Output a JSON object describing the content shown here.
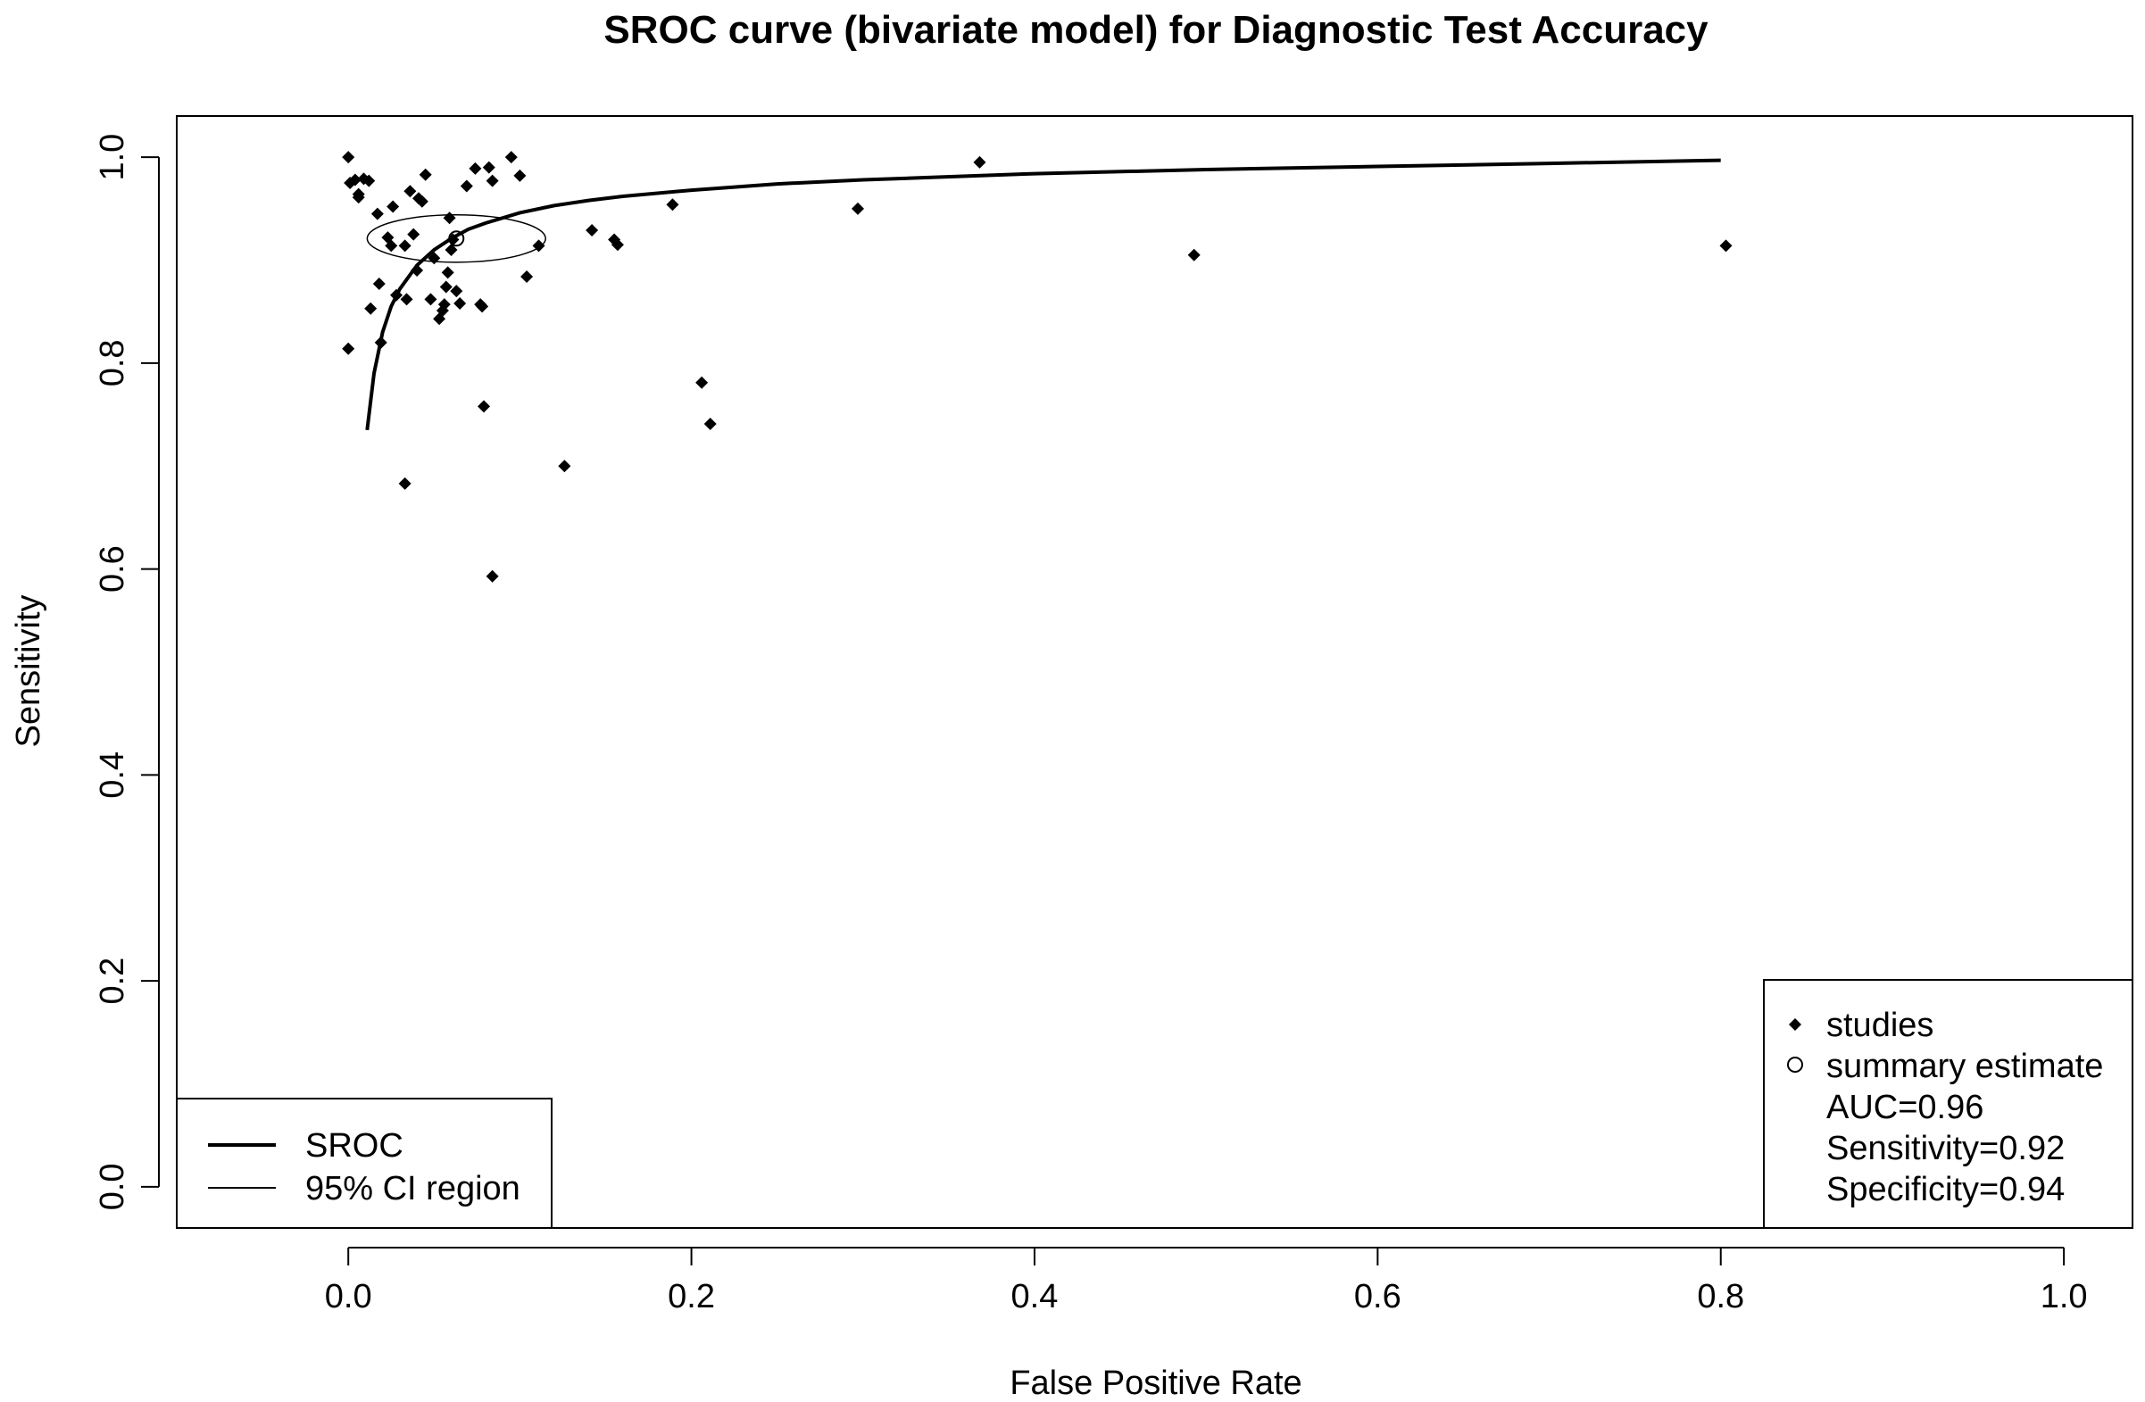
{
  "chart_data": {
    "type": "scatter",
    "title": "SROC curve (bivariate model) for Diagnostic Test Accuracy",
    "xlabel": "False Positive Rate",
    "ylabel": "Sensitivity",
    "xlim": [
      -0.1,
      1.04
    ],
    "ylim": [
      -0.04,
      1.04
    ],
    "x_ticks": [
      0.0,
      0.2,
      0.4,
      0.6,
      0.8,
      1.0
    ],
    "x_tick_labels": [
      "0.0",
      "0.2",
      "0.4",
      "0.6",
      "0.8",
      "1.0"
    ],
    "y_ticks": [
      0.0,
      0.2,
      0.4,
      0.6,
      0.8,
      1.0
    ],
    "y_tick_labels": [
      "0.0",
      "0.2",
      "0.4",
      "0.6",
      "0.8",
      "1.0"
    ],
    "grid": false,
    "series": [
      {
        "name": "studies",
        "kind": "points",
        "marker": "filled-diamond",
        "x": [
          0.0,
          0.001,
          0.004,
          0.006,
          0.006,
          0.009,
          0.012,
          0.013,
          0.017,
          0.018,
          0.019,
          0.023,
          0.025,
          0.026,
          0.028,
          0.033,
          0.034,
          0.036,
          0.038,
          0.04,
          0.041,
          0.043,
          0.045,
          0.048,
          0.05,
          0.053,
          0.055,
          0.056,
          0.057,
          0.058,
          0.059,
          0.06,
          0.061,
          0.063,
          0.065,
          0.069,
          0.074,
          0.077,
          0.079,
          0.082,
          0.084,
          0.095,
          0.1,
          0.104,
          0.111,
          0.142,
          0.155,
          0.157,
          0.189,
          0.0,
          0.033,
          0.078,
          0.084,
          0.126,
          0.206,
          0.211,
          0.297,
          0.368,
          0.493,
          0.803
        ],
        "y": [
          1.0,
          0.975,
          0.978,
          0.964,
          0.961,
          0.979,
          0.977,
          0.853,
          0.945,
          0.877,
          0.82,
          0.922,
          0.914,
          0.952,
          0.866,
          0.914,
          0.862,
          0.967,
          0.925,
          0.89,
          0.96,
          0.957,
          0.983,
          0.862,
          0.902,
          0.843,
          0.851,
          0.857,
          0.874,
          0.888,
          0.941,
          0.91,
          0.92,
          0.87,
          0.858,
          0.972,
          0.989,
          0.857,
          0.758,
          0.99,
          0.977,
          1.0,
          0.982,
          0.884,
          0.914,
          0.929,
          0.92,
          0.915,
          0.954,
          0.814,
          0.683,
          0.855,
          0.593,
          0.7,
          0.781,
          0.741,
          0.95,
          0.995,
          0.905,
          0.914
        ]
      },
      {
        "name": "summary estimate",
        "kind": "point",
        "marker": "open-circle",
        "x": [
          0.063
        ],
        "y": [
          0.921
        ]
      },
      {
        "name": "SROC",
        "kind": "line",
        "x": [
          0.011,
          0.015,
          0.02,
          0.025,
          0.03,
          0.04,
          0.05,
          0.06,
          0.07,
          0.08,
          0.1,
          0.12,
          0.14,
          0.16,
          0.2,
          0.25,
          0.3,
          0.4,
          0.5,
          0.6,
          0.7,
          0.8
        ],
        "y": [
          0.735,
          0.79,
          0.83,
          0.855,
          0.872,
          0.895,
          0.91,
          0.921,
          0.93,
          0.936,
          0.946,
          0.953,
          0.958,
          0.962,
          0.968,
          0.974,
          0.978,
          0.984,
          0.988,
          0.991,
          0.994,
          0.997
        ]
      },
      {
        "name": "95% CI region",
        "kind": "ellipse",
        "center": [
          0.063,
          0.921
        ],
        "radius_x": 0.052,
        "radius_y": 0.023
      }
    ],
    "summary": {
      "auc_label": "AUC=0.96",
      "sensitivity_label": "Sensitivity=0.92",
      "specificity_label": "Specificity=0.94"
    },
    "legends": {
      "left": {
        "position": "bottom-left",
        "entries": [
          "SROC",
          "95% CI region"
        ]
      },
      "right": {
        "position": "bottom-right",
        "entries": [
          "studies",
          "summary estimate"
        ]
      }
    }
  }
}
